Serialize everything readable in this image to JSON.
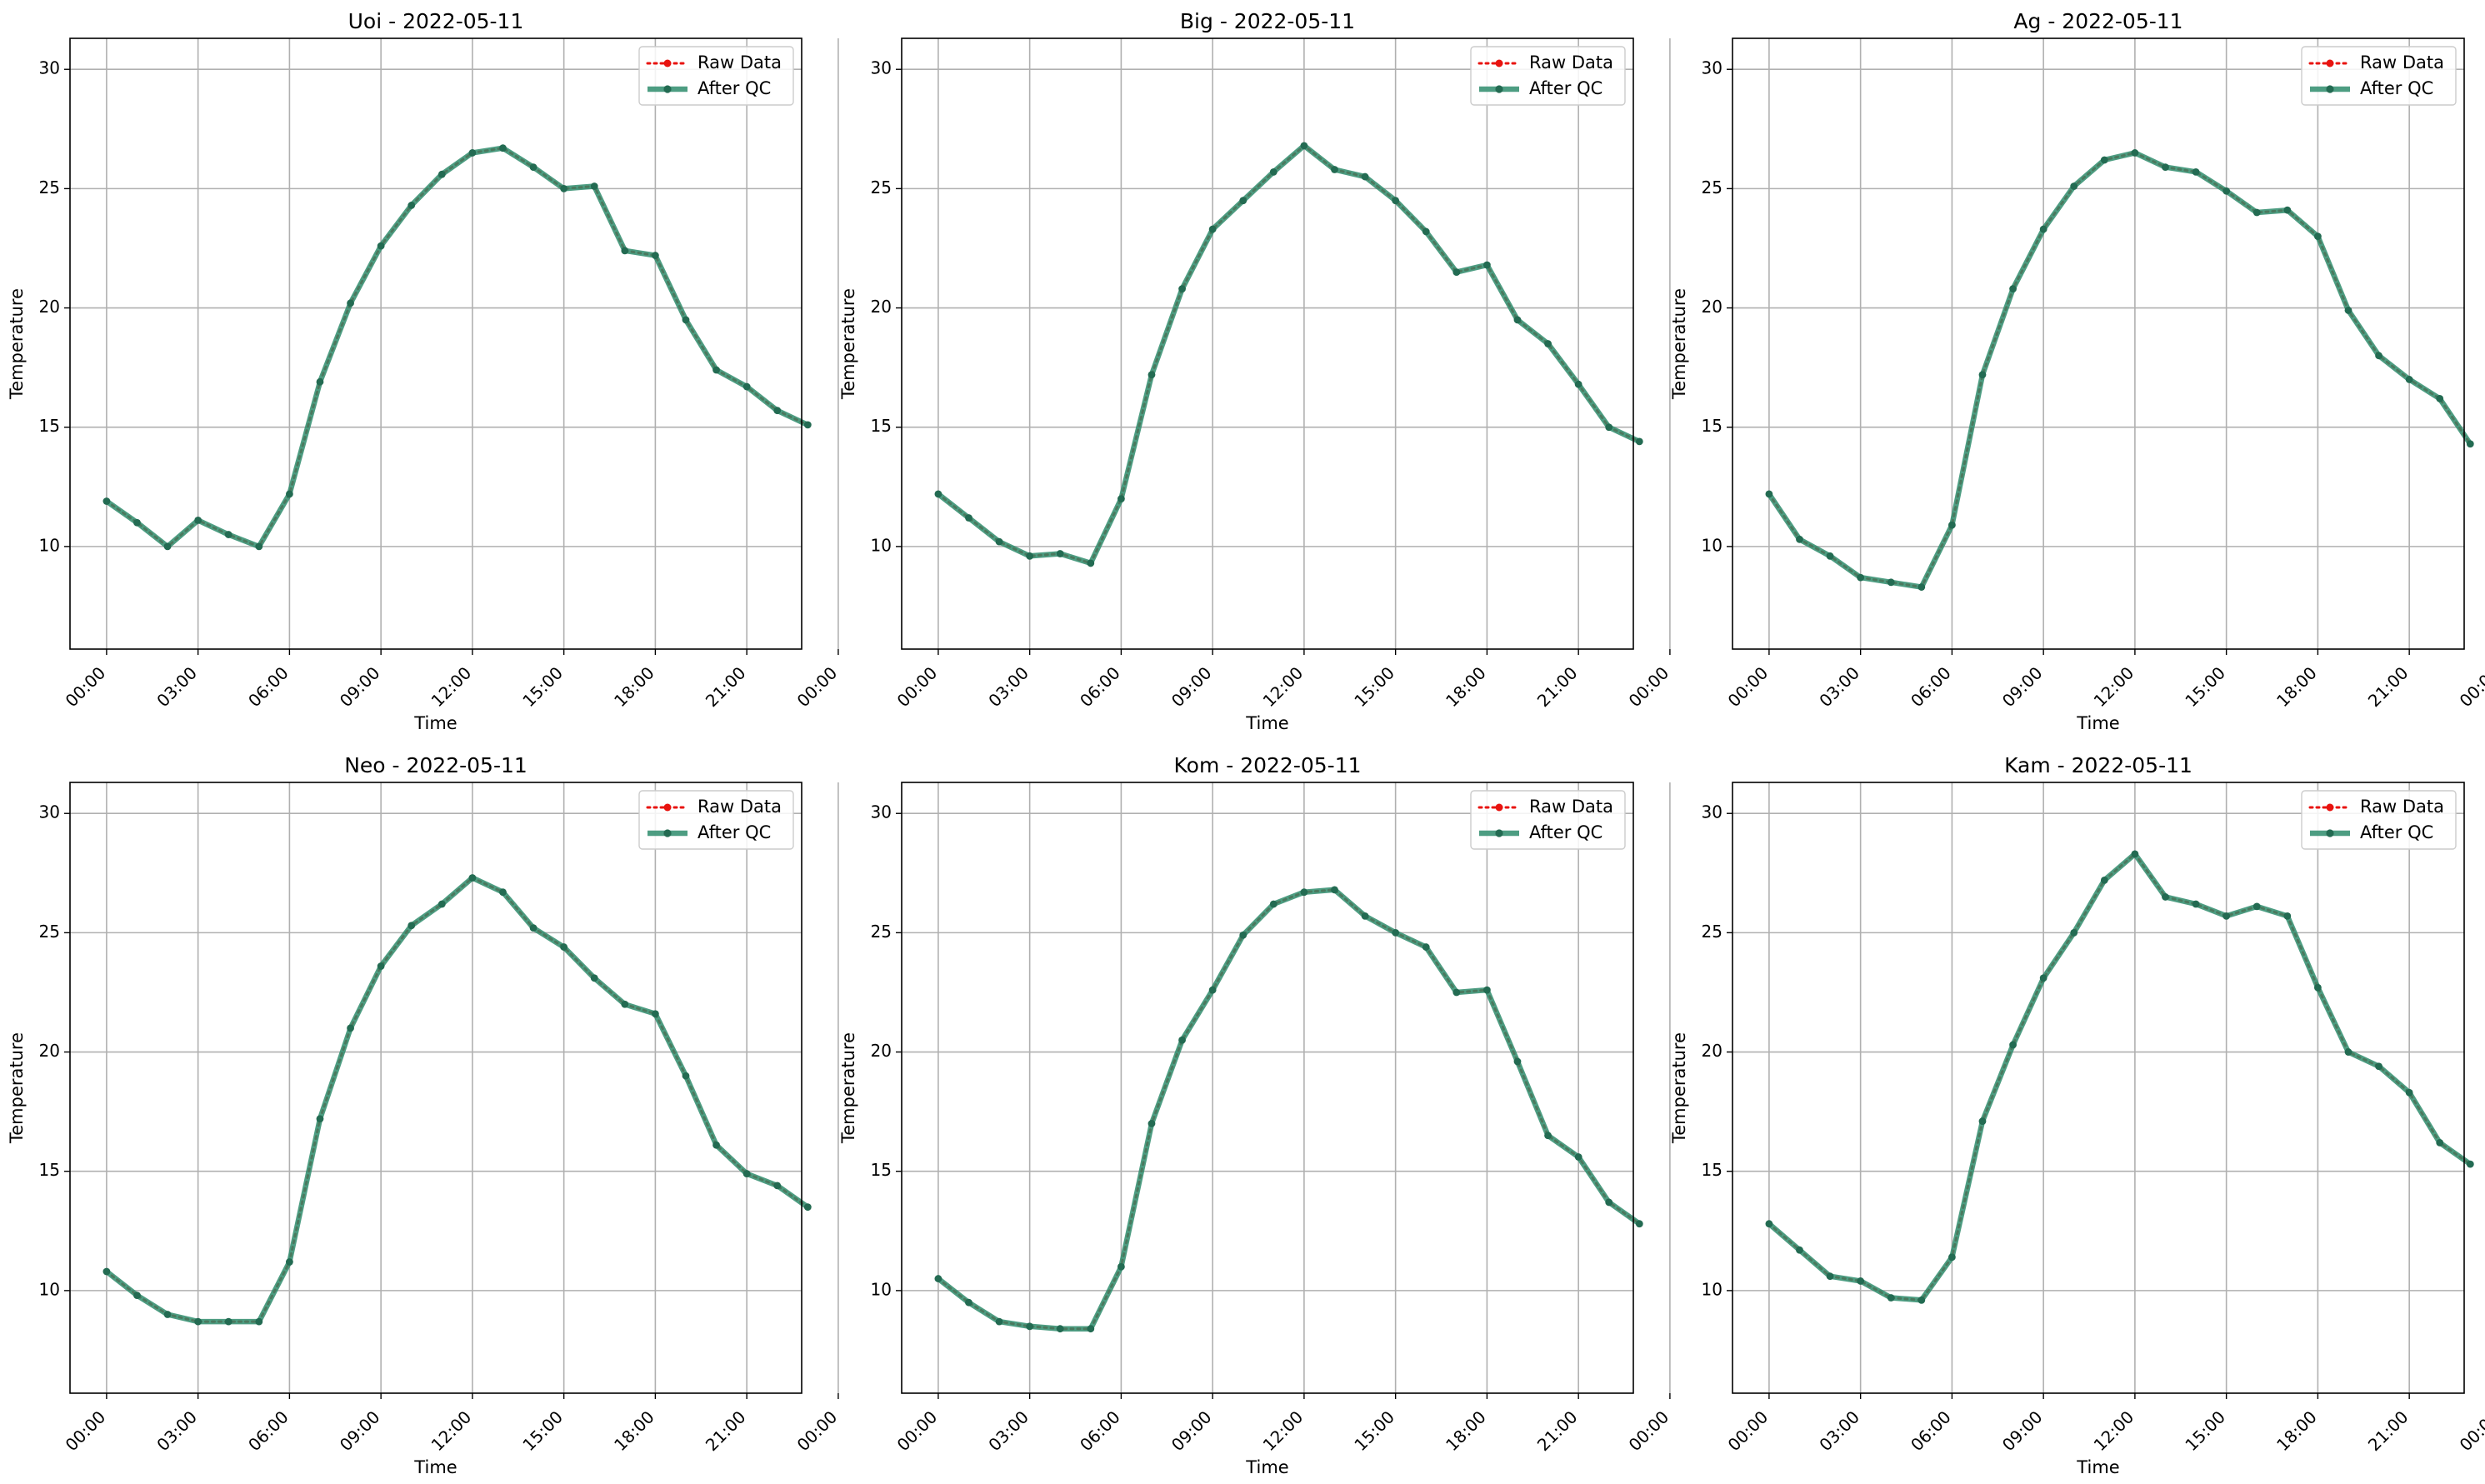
{
  "figure": {
    "x_tick_labels": [
      "00:00",
      "03:00",
      "06:00",
      "09:00",
      "12:00",
      "15:00",
      "18:00",
      "21:00",
      "00:00"
    ],
    "y_ticks": [
      10,
      15,
      20,
      25,
      30
    ],
    "ylim": [
      5.7,
      31.3
    ],
    "xlim_hours": [
      -1.2,
      22.8
    ],
    "xlabel": "Time",
    "ylabel": "Temperature",
    "grid": true,
    "legend_placement": "top-right",
    "colors": {
      "raw": "#e8130f",
      "qc": "#2e8c6c",
      "qc_marker": "#236b52",
      "grid": "#b0b0b0"
    }
  },
  "legend": {
    "raw_label": "Raw Data",
    "qc_label": "After QC"
  },
  "chart_data": [
    {
      "type": "line",
      "title": "Uoi - 2022-05-11",
      "xlabel": "Time",
      "ylabel": "Temperature",
      "x": [
        "00:00",
        "01:00",
        "02:00",
        "03:00",
        "04:00",
        "05:00",
        "06:00",
        "07:00",
        "08:00",
        "09:00",
        "10:00",
        "11:00",
        "12:00",
        "13:00",
        "14:00",
        "15:00",
        "16:00",
        "17:00",
        "18:00",
        "19:00",
        "20:00",
        "21:00",
        "22:00",
        "23:00"
      ],
      "series": [
        {
          "name": "Raw Data",
          "values": [
            11.9,
            11.0,
            10.0,
            11.1,
            10.5,
            10.0,
            12.2,
            16.9,
            20.2,
            22.6,
            24.3,
            25.6,
            26.5,
            26.7,
            25.9,
            25.0,
            25.1,
            22.4,
            22.2,
            19.5,
            17.4,
            16.7,
            15.7,
            15.1
          ]
        },
        {
          "name": "After QC",
          "values": [
            11.9,
            11.0,
            10.0,
            11.1,
            10.5,
            10.0,
            12.2,
            16.9,
            20.2,
            22.6,
            24.3,
            25.6,
            26.5,
            26.7,
            25.9,
            25.0,
            25.1,
            22.4,
            22.2,
            19.5,
            17.4,
            16.7,
            15.7,
            15.1
          ]
        }
      ]
    },
    {
      "type": "line",
      "title": "Big - 2022-05-11",
      "xlabel": "Time",
      "ylabel": "Temperature",
      "x": [
        "00:00",
        "01:00",
        "02:00",
        "03:00",
        "04:00",
        "05:00",
        "06:00",
        "07:00",
        "08:00",
        "09:00",
        "10:00",
        "11:00",
        "12:00",
        "13:00",
        "14:00",
        "15:00",
        "16:00",
        "17:00",
        "18:00",
        "19:00",
        "20:00",
        "21:00",
        "22:00",
        "23:00"
      ],
      "series": [
        {
          "name": "Raw Data",
          "values": [
            12.2,
            11.2,
            10.2,
            9.6,
            9.7,
            9.3,
            12.0,
            17.2,
            20.8,
            23.3,
            24.5,
            25.7,
            26.8,
            25.8,
            25.5,
            24.5,
            23.2,
            21.5,
            21.8,
            19.5,
            18.5,
            16.8,
            15.0,
            14.4
          ]
        },
        {
          "name": "After QC",
          "values": [
            12.2,
            11.2,
            10.2,
            9.6,
            9.7,
            9.3,
            12.0,
            17.2,
            20.8,
            23.3,
            24.5,
            25.7,
            26.8,
            25.8,
            25.5,
            24.5,
            23.2,
            21.5,
            21.8,
            19.5,
            18.5,
            16.8,
            15.0,
            14.4
          ]
        }
      ]
    },
    {
      "type": "line",
      "title": "Ag - 2022-05-11",
      "xlabel": "Time",
      "ylabel": "Temperature",
      "x": [
        "00:00",
        "01:00",
        "02:00",
        "03:00",
        "04:00",
        "05:00",
        "06:00",
        "07:00",
        "08:00",
        "09:00",
        "10:00",
        "11:00",
        "12:00",
        "13:00",
        "14:00",
        "15:00",
        "16:00",
        "17:00",
        "18:00",
        "19:00",
        "20:00",
        "21:00",
        "22:00",
        "23:00"
      ],
      "series": [
        {
          "name": "Raw Data",
          "values": [
            12.2,
            10.3,
            9.6,
            8.7,
            8.5,
            8.3,
            10.9,
            17.2,
            20.8,
            23.3,
            25.1,
            26.2,
            26.5,
            25.9,
            25.7,
            24.9,
            24.0,
            24.1,
            23.0,
            19.9,
            18.0,
            17.0,
            16.2,
            14.3
          ]
        },
        {
          "name": "After QC",
          "values": [
            12.2,
            10.3,
            9.6,
            8.7,
            8.5,
            8.3,
            10.9,
            17.2,
            20.8,
            23.3,
            25.1,
            26.2,
            26.5,
            25.9,
            25.7,
            24.9,
            24.0,
            24.1,
            23.0,
            19.9,
            18.0,
            17.0,
            16.2,
            14.3
          ]
        }
      ]
    },
    {
      "type": "line",
      "title": "Neo - 2022-05-11",
      "xlabel": "Time",
      "ylabel": "Temperature",
      "x": [
        "00:00",
        "01:00",
        "02:00",
        "03:00",
        "04:00",
        "05:00",
        "06:00",
        "07:00",
        "08:00",
        "09:00",
        "10:00",
        "11:00",
        "12:00",
        "13:00",
        "14:00",
        "15:00",
        "16:00",
        "17:00",
        "18:00",
        "19:00",
        "20:00",
        "21:00",
        "22:00",
        "23:00"
      ],
      "series": [
        {
          "name": "Raw Data",
          "values": [
            10.8,
            9.8,
            9.0,
            8.7,
            8.7,
            8.7,
            11.2,
            17.2,
            21.0,
            23.6,
            25.3,
            26.2,
            27.3,
            26.7,
            25.2,
            24.4,
            23.1,
            22.0,
            21.6,
            19.0,
            16.1,
            14.9,
            14.4,
            13.5
          ]
        },
        {
          "name": "After QC",
          "values": [
            10.8,
            9.8,
            9.0,
            8.7,
            8.7,
            8.7,
            11.2,
            17.2,
            21.0,
            23.6,
            25.3,
            26.2,
            27.3,
            26.7,
            25.2,
            24.4,
            23.1,
            22.0,
            21.6,
            19.0,
            16.1,
            14.9,
            14.4,
            13.5
          ]
        }
      ]
    },
    {
      "type": "line",
      "title": "Kom - 2022-05-11",
      "xlabel": "Time",
      "ylabel": "Temperature",
      "x": [
        "00:00",
        "01:00",
        "02:00",
        "03:00",
        "04:00",
        "05:00",
        "06:00",
        "07:00",
        "08:00",
        "09:00",
        "10:00",
        "11:00",
        "12:00",
        "13:00",
        "14:00",
        "15:00",
        "16:00",
        "17:00",
        "18:00",
        "19:00",
        "20:00",
        "21:00",
        "22:00",
        "23:00"
      ],
      "series": [
        {
          "name": "Raw Data",
          "values": [
            10.5,
            9.5,
            8.7,
            8.5,
            8.4,
            8.4,
            11.0,
            17.0,
            20.5,
            22.6,
            24.9,
            26.2,
            26.7,
            26.8,
            25.7,
            25.0,
            24.4,
            22.5,
            22.6,
            19.6,
            16.5,
            15.6,
            13.7,
            12.8
          ]
        },
        {
          "name": "After QC",
          "values": [
            10.5,
            9.5,
            8.7,
            8.5,
            8.4,
            8.4,
            11.0,
            17.0,
            20.5,
            22.6,
            24.9,
            26.2,
            26.7,
            26.8,
            25.7,
            25.0,
            24.4,
            22.5,
            22.6,
            19.6,
            16.5,
            15.6,
            13.7,
            12.8
          ]
        }
      ]
    },
    {
      "type": "line",
      "title": "Kam - 2022-05-11",
      "xlabel": "Time",
      "ylabel": "Temperature",
      "x": [
        "00:00",
        "01:00",
        "02:00",
        "03:00",
        "04:00",
        "05:00",
        "06:00",
        "07:00",
        "08:00",
        "09:00",
        "10:00",
        "11:00",
        "12:00",
        "13:00",
        "14:00",
        "15:00",
        "16:00",
        "17:00",
        "18:00",
        "19:00",
        "20:00",
        "21:00",
        "22:00",
        "23:00"
      ],
      "series": [
        {
          "name": "Raw Data",
          "values": [
            12.8,
            11.7,
            10.6,
            10.4,
            9.7,
            9.6,
            11.4,
            17.1,
            20.3,
            23.1,
            25.0,
            27.2,
            28.3,
            26.5,
            26.2,
            25.7,
            26.1,
            25.7,
            22.7,
            20.0,
            19.4,
            18.3,
            16.2,
            15.3
          ]
        },
        {
          "name": "After QC",
          "values": [
            12.8,
            11.7,
            10.6,
            10.4,
            9.7,
            9.6,
            11.4,
            17.1,
            20.3,
            23.1,
            25.0,
            27.2,
            28.3,
            26.5,
            26.2,
            25.7,
            26.1,
            25.7,
            22.7,
            20.0,
            19.4,
            18.3,
            16.2,
            15.3
          ]
        }
      ]
    }
  ]
}
